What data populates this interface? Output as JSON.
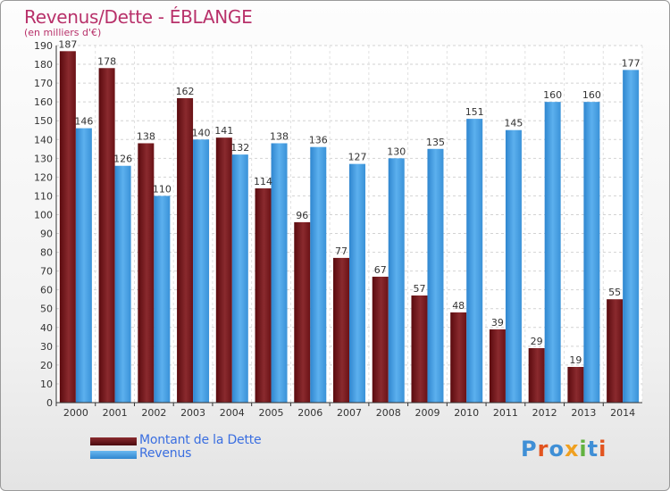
{
  "title": "Revenus/Dette - ÉBLANGE",
  "subtitle": "(en milliers d'€)",
  "logo": {
    "text": "Proxiti",
    "colors": [
      "#3f8fd6",
      "#e2541f",
      "#3f8fd6",
      "#f0a020",
      "#62b240",
      "#3f8fd6",
      "#e2541f"
    ]
  },
  "chart_data": {
    "type": "bar",
    "categories": [
      "2000",
      "2001",
      "2002",
      "2003",
      "2004",
      "2005",
      "2006",
      "2007",
      "2008",
      "2009",
      "2010",
      "2011",
      "2012",
      "2013",
      "2014"
    ],
    "series": [
      {
        "name": "Montant de la Dette",
        "color": "#7a1a1e",
        "values": [
          187,
          178,
          138,
          162,
          141,
          114,
          96,
          77,
          67,
          57,
          48,
          39,
          29,
          19,
          55
        ]
      },
      {
        "name": "Revenus",
        "color": "#4aa3e6",
        "values": [
          146,
          126,
          110,
          140,
          132,
          138,
          136,
          127,
          130,
          135,
          151,
          145,
          160,
          160,
          177
        ]
      }
    ],
    "ylim": [
      0,
      190
    ],
    "yticks": [
      0,
      10,
      20,
      30,
      40,
      50,
      60,
      70,
      80,
      90,
      100,
      110,
      120,
      130,
      140,
      150,
      160,
      170,
      180,
      190
    ],
    "grid": true,
    "legend": "bottom-left"
  }
}
